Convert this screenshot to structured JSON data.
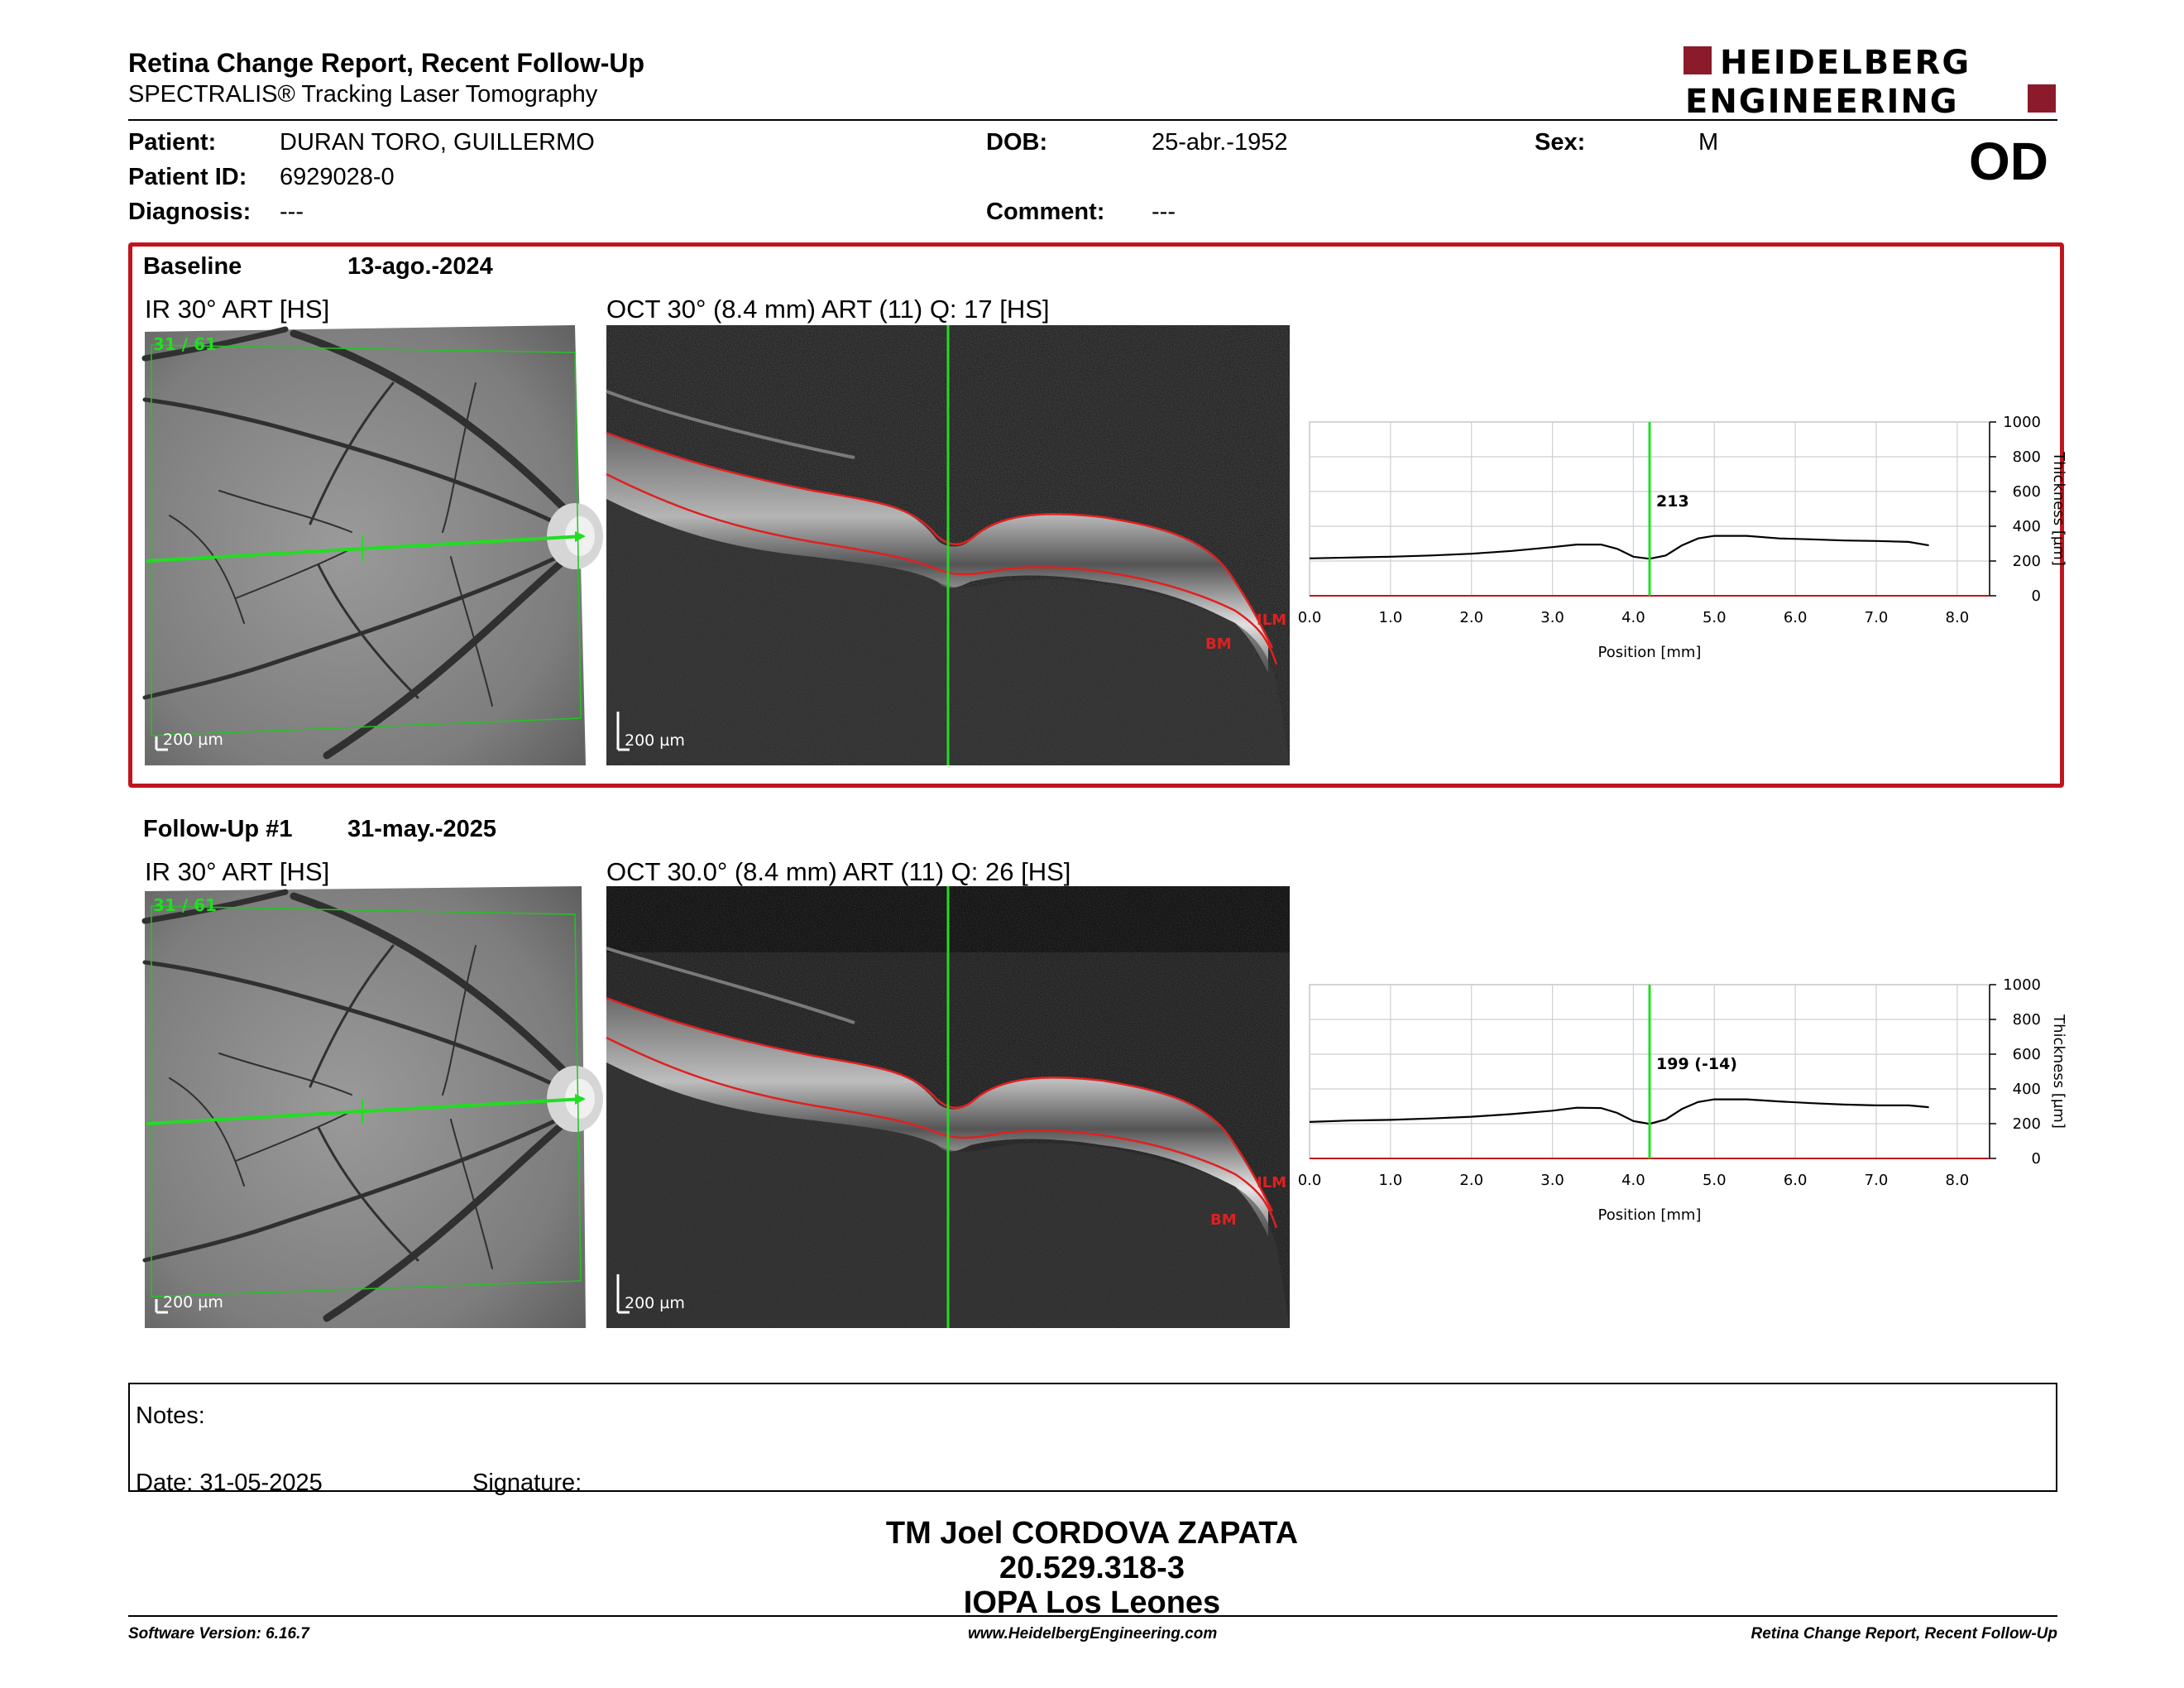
{
  "report": {
    "title": "Retina Change Report, Recent Follow-Up",
    "subtitle": "SPECTRALIS® Tracking Laser Tomography",
    "brand_line1": "HEIDELBERG",
    "brand_line2": "ENGINEERING",
    "brand_color": "#8b1a2b",
    "eye": "OD"
  },
  "patient": {
    "patient_label": "Patient:",
    "name": "DURAN TORO, GUILLERMO",
    "id_label": "Patient ID:",
    "id": "6929028-0",
    "diagnosis_label": "Diagnosis:",
    "diagnosis": "---",
    "dob_label": "DOB:",
    "dob": "25-abr.-1952",
    "comment_label": "Comment:",
    "comment": "---",
    "sex_label": "Sex:",
    "sex": "M"
  },
  "baseline": {
    "label": "Baseline",
    "date": "13-ago.-2024",
    "ir_title": "IR 30° ART [HS]",
    "oct_title": "OCT 30° (8.4 mm) ART (11) Q: 17 [HS]",
    "slice_counter": "31 / 61",
    "scale_ir": "200 µm",
    "scale_oct": "200 µm",
    "ilm_label": "ILM",
    "bm_label": "BM",
    "frame_color": "#c0151e"
  },
  "followup": {
    "label": "Follow-Up #1",
    "date": "31-may.-2025",
    "ir_title": "IR 30° ART [HS]",
    "oct_title": "OCT 30.0° (8.4 mm) ART (11) Q: 26 [HS]",
    "slice_counter": "31 / 61",
    "scale_ir": "200 µm",
    "scale_oct": "200 µm",
    "ilm_label": "ILM",
    "bm_label": "BM"
  },
  "chart_data": [
    {
      "type": "line",
      "title": "",
      "xlabel": "Position [mm]",
      "ylabel": "Thickness [µm]",
      "xlim": [
        0,
        8.4
      ],
      "ylim": [
        0,
        1000
      ],
      "xticks": [
        "0.0",
        "1.0",
        "2.0",
        "3.0",
        "4.0",
        "5.0",
        "6.0",
        "7.0",
        "8.0"
      ],
      "yticks": [
        "0",
        "200",
        "400",
        "600",
        "800",
        "1000"
      ],
      "grid": true,
      "cursor_x": 4.2,
      "cursor_label": "213",
      "series": [
        {
          "x": [
            0.0,
            0.5,
            1.0,
            1.5,
            2.0,
            2.5,
            3.0,
            3.3,
            3.6,
            3.8,
            4.0,
            4.2,
            4.4,
            4.6,
            4.8,
            5.0,
            5.4,
            5.8,
            6.2,
            6.6,
            7.0,
            7.4,
            7.65
          ],
          "y": [
            215,
            220,
            225,
            232,
            242,
            258,
            280,
            295,
            295,
            270,
            225,
            213,
            232,
            290,
            330,
            345,
            345,
            330,
            325,
            318,
            315,
            310,
            290
          ]
        }
      ]
    },
    {
      "type": "line",
      "title": "",
      "xlabel": "Position [mm]",
      "ylabel": "Thickness [µm]",
      "xlim": [
        0,
        8.4
      ],
      "ylim": [
        0,
        1000
      ],
      "xticks": [
        "0.0",
        "1.0",
        "2.0",
        "3.0",
        "4.0",
        "5.0",
        "6.0",
        "7.0",
        "8.0"
      ],
      "yticks": [
        "0",
        "200",
        "400",
        "600",
        "800",
        "1000"
      ],
      "grid": true,
      "cursor_x": 4.2,
      "cursor_label": "199 (-14)",
      "series": [
        {
          "x": [
            0.0,
            0.5,
            1.0,
            1.5,
            2.0,
            2.5,
            3.0,
            3.3,
            3.6,
            3.8,
            4.0,
            4.2,
            4.4,
            4.6,
            4.8,
            5.0,
            5.4,
            5.8,
            6.2,
            6.6,
            7.0,
            7.4,
            7.65
          ],
          "y": [
            210,
            218,
            222,
            230,
            240,
            255,
            275,
            292,
            290,
            262,
            215,
            199,
            225,
            285,
            325,
            340,
            340,
            328,
            318,
            310,
            305,
            305,
            295
          ]
        }
      ]
    }
  ],
  "notes": {
    "notes_label": "Notes:",
    "date_label": "Date: 31-05-2025",
    "signature_label": "Signature:"
  },
  "signature": {
    "line1": "TM Joel CORDOVA ZAPATA",
    "line2": "20.529.318-3",
    "line3": "IOPA Los Leones"
  },
  "footer": {
    "software": "Software Version: 6.16.7",
    "website": "www.HeidelbergEngineering.com",
    "report_name": "Retina Change Report, Recent Follow-Up"
  }
}
